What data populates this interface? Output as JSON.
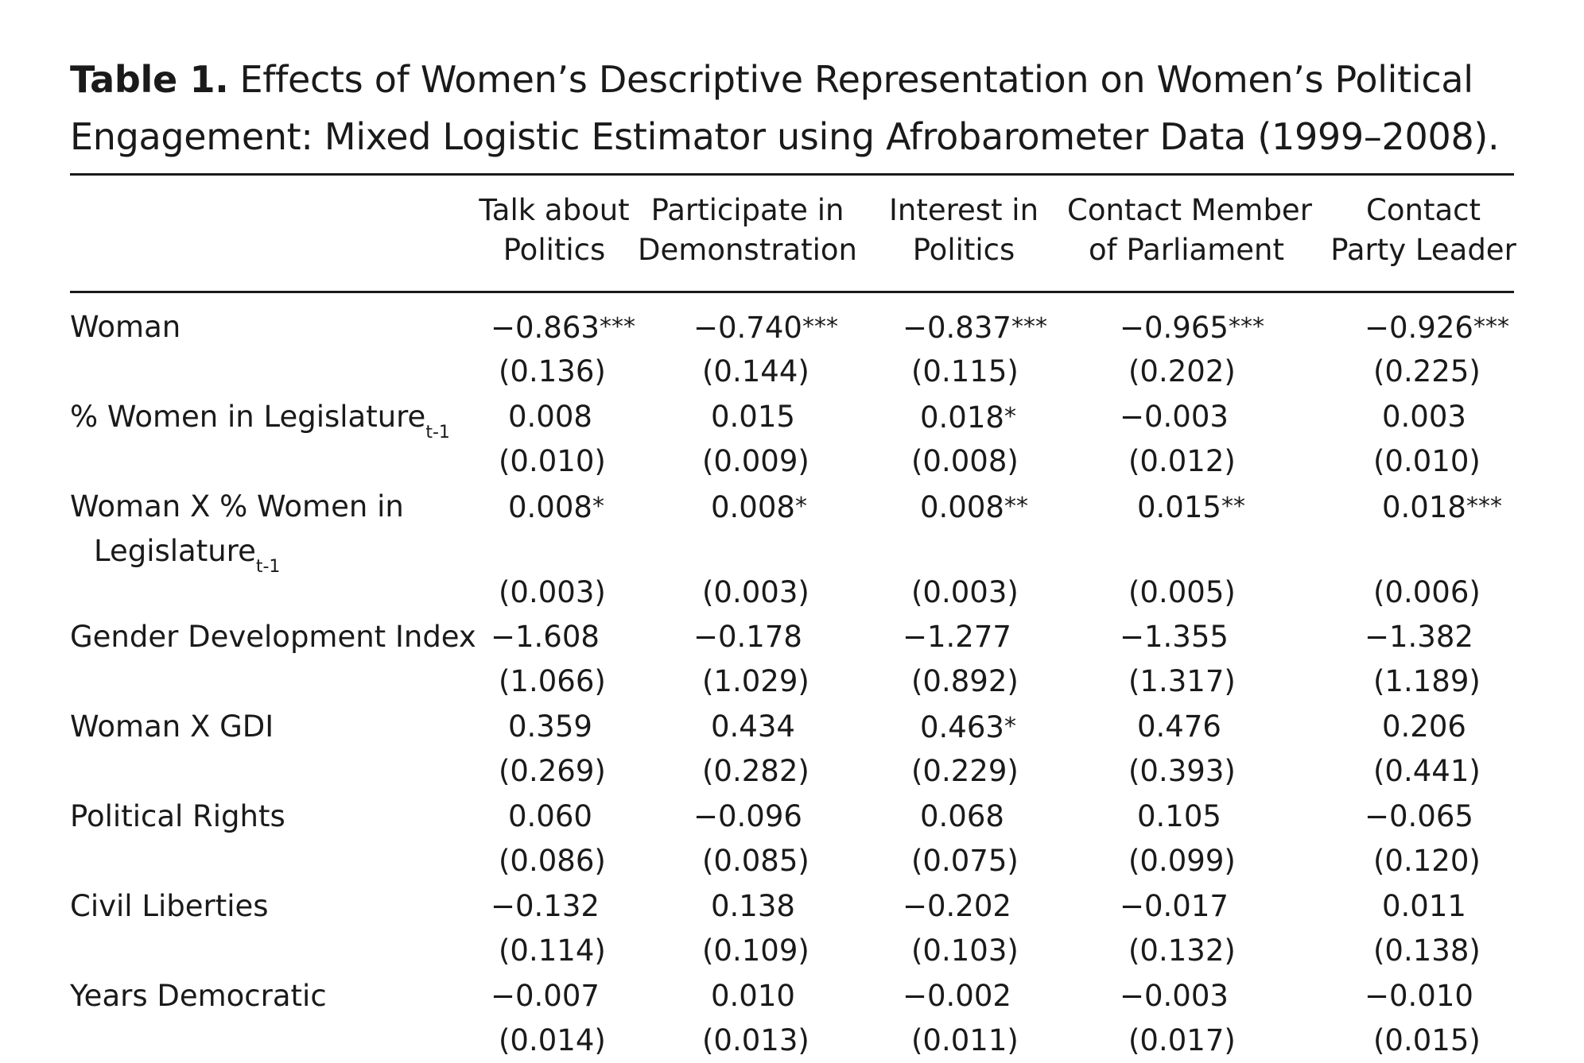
{
  "caption": {
    "label": "Table 1.",
    "text": "Effects of Women’s Descriptive Representation on Women’s Political Engagement: Mixed Logistic Estimator using Afrobarometer Data (1999–2008)."
  },
  "columns": [
    {
      "line1": "Talk about",
      "line2": "Politics"
    },
    {
      "line1": "Participate in",
      "line2": "Demonstration"
    },
    {
      "line1": "Interest in",
      "line2": "Politics"
    },
    {
      "line1": "Contact Member",
      "line2": "of Parliament"
    },
    {
      "line1": "Contact",
      "line2": "Party Leader"
    }
  ],
  "rows": [
    {
      "label": "Woman",
      "label_cont": "",
      "subscript": "",
      "subscript_cont": "",
      "coef": [
        "−0.863",
        "−0.740",
        "−0.837",
        "−0.965",
        "−0.926"
      ],
      "stars": [
        "***",
        "***",
        "***",
        "***",
        "***"
      ],
      "se": [
        "(0.136)",
        "(0.144)",
        "(0.115)",
        "(0.202)",
        "(0.225)"
      ]
    },
    {
      "label": "% Women in Legislature",
      "label_cont": "",
      "subscript": "t-1",
      "subscript_cont": "",
      "coef": [
        "0.008",
        "0.015",
        "0.018",
        "−0.003",
        "0.003"
      ],
      "stars": [
        "",
        "",
        "*",
        "",
        ""
      ],
      "se": [
        "(0.010)",
        "(0.009)",
        "(0.008)",
        "(0.012)",
        "(0.010)"
      ]
    },
    {
      "label": "Woman X % Women in",
      "label_cont": "Legislature",
      "subscript": "",
      "subscript_cont": "t-1",
      "coef": [
        "0.008",
        "0.008",
        "0.008",
        "0.015",
        "0.018"
      ],
      "stars": [
        "*",
        "*",
        "**",
        "**",
        "***"
      ],
      "se": [
        "(0.003)",
        "(0.003)",
        "(0.003)",
        "(0.005)",
        "(0.006)"
      ]
    },
    {
      "label": "Gender Development Index",
      "label_cont": "",
      "subscript": "",
      "subscript_cont": "",
      "coef": [
        "−1.608",
        "−0.178",
        "−1.277",
        "−1.355",
        "−1.382"
      ],
      "stars": [
        "",
        "",
        "",
        "",
        ""
      ],
      "se": [
        "(1.066)",
        "(1.029)",
        "(0.892)",
        "(1.317)",
        "(1.189)"
      ]
    },
    {
      "label": "Woman X GDI",
      "label_cont": "",
      "subscript": "",
      "subscript_cont": "",
      "coef": [
        "0.359",
        "0.434",
        "0.463",
        "0.476",
        "0.206"
      ],
      "stars": [
        "",
        "",
        "*",
        "",
        ""
      ],
      "se": [
        "(0.269)",
        "(0.282)",
        "(0.229)",
        "(0.393)",
        "(0.441)"
      ]
    },
    {
      "label": "Political Rights",
      "label_cont": "",
      "subscript": "",
      "subscript_cont": "",
      "coef": [
        "0.060",
        "−0.096",
        "0.068",
        "0.105",
        "−0.065"
      ],
      "stars": [
        "",
        "",
        "",
        "",
        ""
      ],
      "se": [
        "(0.086)",
        "(0.085)",
        "(0.075)",
        "(0.099)",
        "(0.120)"
      ]
    },
    {
      "label": "Civil Liberties",
      "label_cont": "",
      "subscript": "",
      "subscript_cont": "",
      "coef": [
        "−0.132",
        "0.138",
        "−0.202",
        "−0.017",
        "0.011"
      ],
      "stars": [
        "",
        "",
        "",
        "",
        ""
      ],
      "se": [
        "(0.114)",
        "(0.109)",
        "(0.103)",
        "(0.132)",
        "(0.138)"
      ]
    },
    {
      "label": "Years Democratic",
      "label_cont": "",
      "subscript": "",
      "subscript_cont": "",
      "coef": [
        "−0.007",
        "0.010",
        "−0.002",
        "−0.003",
        "−0.010"
      ],
      "stars": [
        "",
        "",
        "",
        "",
        ""
      ],
      "se": [
        "(0.014)",
        "(0.013)",
        "(0.011)",
        "(0.017)",
        "(0.015)"
      ]
    }
  ]
}
